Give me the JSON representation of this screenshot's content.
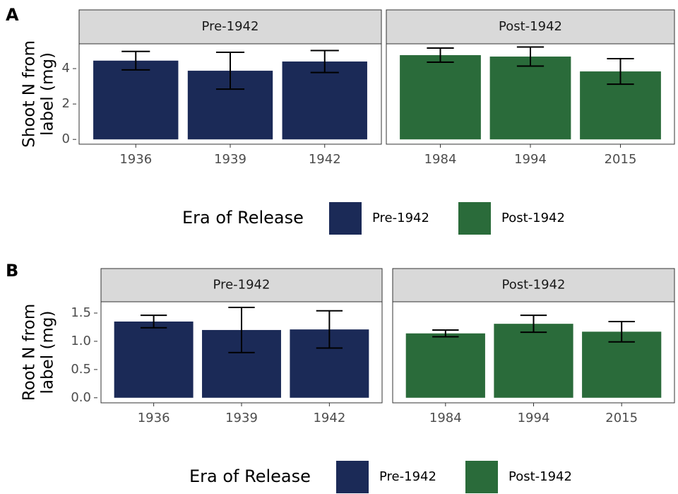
{
  "chart_data": [
    {
      "type": "bar",
      "panel_label": "A",
      "ylabel": [
        "Shoot N from",
        "label (mg)"
      ],
      "ylim": [
        -0.27,
        5.4
      ],
      "yticks": [
        0,
        2,
        4
      ],
      "legend_title": "Era of Release",
      "facets": [
        {
          "title": "Pre-1942",
          "color": "#1b2a57",
          "categories": [
            "1936",
            "1939",
            "1942"
          ],
          "values": [
            4.45,
            3.88,
            4.4
          ],
          "errors": [
            0.52,
            1.04,
            0.62
          ]
        },
        {
          "title": "Post-1942",
          "color": "#2a6b3a",
          "categories": [
            "1984",
            "1994",
            "2015"
          ],
          "values": [
            4.76,
            4.68,
            3.84
          ],
          "errors": [
            0.4,
            0.54,
            0.72
          ]
        }
      ]
    },
    {
      "type": "bar",
      "panel_label": "B",
      "ylabel": [
        "Root N from",
        "label (mg)"
      ],
      "ylim": [
        -0.09,
        1.7
      ],
      "yticks": [
        {
          "value": 0,
          "label": "0.0"
        },
        0.5,
        {
          "value": 1,
          "label": "1.0"
        },
        1.5
      ],
      "legend_title": "Era of Release",
      "facets": [
        {
          "title": "Pre-1942",
          "color": "#1b2a57",
          "categories": [
            "1936",
            "1939",
            "1942"
          ],
          "values": [
            1.35,
            1.2,
            1.21
          ],
          "errors": [
            0.11,
            0.4,
            0.33
          ]
        },
        {
          "title": "Post-1942",
          "color": "#2a6b3a",
          "categories": [
            "1984",
            "1994",
            "2015"
          ],
          "values": [
            1.14,
            1.31,
            1.17
          ],
          "errors": [
            0.06,
            0.15,
            0.18
          ]
        }
      ]
    }
  ]
}
